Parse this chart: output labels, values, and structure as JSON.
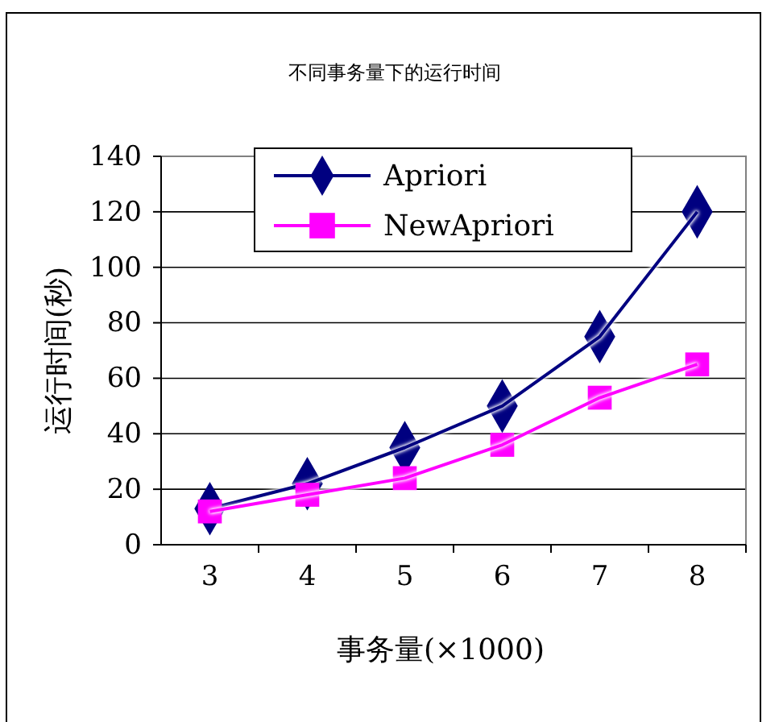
{
  "chart_data": {
    "type": "line",
    "title": "不同事务量下的运行时间",
    "xlabel": "事务量(×1000)",
    "ylabel": "运行时间(秒)",
    "categories": [
      "3",
      "4",
      "5",
      "6",
      "7",
      "8"
    ],
    "series": [
      {
        "name": "Apriori",
        "color": "#000080",
        "marker": "diamond",
        "values": [
          13,
          22,
          35,
          50,
          75,
          120
        ]
      },
      {
        "name": "NewApriori",
        "color": "#ff00ff",
        "marker": "square",
        "values": [
          12,
          18,
          24,
          36,
          53,
          65
        ]
      }
    ],
    "ylim": [
      0,
      140
    ],
    "yticks": [
      0,
      20,
      40,
      60,
      80,
      100,
      120,
      140
    ],
    "grid": "y",
    "legend": "top"
  }
}
